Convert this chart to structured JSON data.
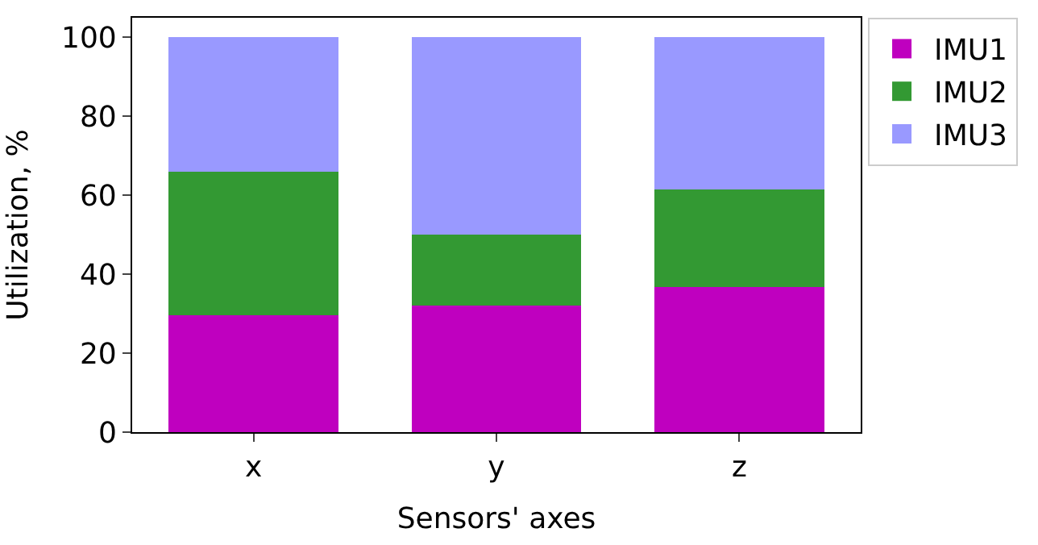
{
  "chart_data": {
    "type": "bar",
    "stacked": true,
    "xlabel": "Sensors' axes",
    "ylabel": "Utilization, %",
    "categories": [
      "x",
      "y",
      "z"
    ],
    "series": [
      {
        "name": "IMU1",
        "color": "#bf00bf",
        "values": [
          29.7,
          32.0,
          36.7
        ]
      },
      {
        "name": "IMU2",
        "color": "#339933",
        "values": [
          36.3,
          18.0,
          24.7
        ]
      },
      {
        "name": "IMU3",
        "color": "#9999ff",
        "values": [
          34.0,
          50.0,
          38.6
        ]
      }
    ],
    "ylim": [
      0,
      105
    ],
    "yticks": [
      0,
      20,
      40,
      60,
      80,
      100
    ],
    "legend": "top right"
  }
}
